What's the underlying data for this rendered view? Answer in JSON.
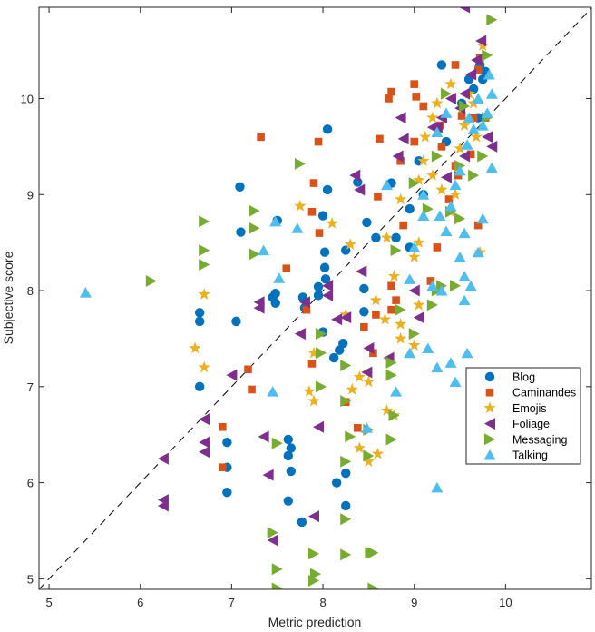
{
  "chart_data": {
    "type": "scatter",
    "title": "",
    "xlabel": "Metric prediction",
    "ylabel": "Subjective score",
    "xlim": [
      4.89,
      10.94
    ],
    "ylim": [
      4.89,
      10.95
    ],
    "xticks": [
      5,
      6,
      7,
      8,
      9,
      10
    ],
    "yticks": [
      5,
      6,
      7,
      8,
      9,
      10
    ],
    "xtick_labels": [
      "5",
      "6",
      "7",
      "8",
      "9",
      "10"
    ],
    "ytick_labels": [
      "5",
      "6",
      "7",
      "8",
      "9",
      "10"
    ],
    "grid": false,
    "legend_position": "right",
    "reference_line": {
      "style": "dashed",
      "color": "#000000",
      "from": [
        4.89,
        4.89
      ],
      "to": [
        10.94,
        10.94
      ]
    },
    "series": [
      {
        "name": "Blog",
        "marker": "circle",
        "color": "#0072BD",
        "points": [
          [
            7.09,
            9.08
          ],
          [
            7.1,
            8.61
          ],
          [
            6.65,
            7.77
          ],
          [
            6.65,
            7.68
          ],
          [
            7.05,
            7.68
          ],
          [
            6.65,
            7.0
          ],
          [
            7.48,
            7.97
          ],
          [
            7.48,
            7.87
          ],
          [
            7.45,
            7.93
          ],
          [
            7.5,
            8.73
          ],
          [
            7.78,
            7.93
          ],
          [
            7.8,
            7.82
          ],
          [
            7.95,
            8.04
          ],
          [
            7.95,
            7.95
          ],
          [
            8.05,
            9.68
          ],
          [
            8.05,
            9.05
          ],
          [
            8.0,
            8.78
          ],
          [
            8.02,
            8.4
          ],
          [
            8.02,
            8.24
          ],
          [
            8.03,
            8.12
          ],
          [
            8.0,
            7.57
          ],
          [
            8.12,
            7.3
          ],
          [
            8.18,
            7.38
          ],
          [
            8.22,
            7.45
          ],
          [
            8.25,
            8.42
          ],
          [
            8.38,
            9.13
          ],
          [
            8.45,
            8.02
          ],
          [
            8.45,
            7.78
          ],
          [
            8.48,
            8.71
          ],
          [
            8.58,
            8.55
          ],
          [
            8.75,
            9.12
          ],
          [
            8.8,
            8.55
          ],
          [
            8.95,
            8.85
          ],
          [
            8.95,
            8.45
          ],
          [
            9.05,
            9.35
          ],
          [
            9.1,
            9.0
          ],
          [
            9.3,
            10.35
          ],
          [
            9.35,
            9.55
          ],
          [
            9.52,
            9.95
          ],
          [
            9.6,
            10.2
          ],
          [
            9.65,
            10.1
          ],
          [
            9.72,
            10.35
          ],
          [
            9.75,
            10.2
          ],
          [
            9.78,
            10.28
          ],
          [
            9.7,
            9.8
          ],
          [
            6.95,
            6.42
          ],
          [
            6.95,
            6.16
          ],
          [
            6.95,
            5.9
          ],
          [
            7.62,
            6.45
          ],
          [
            7.65,
            6.36
          ],
          [
            7.62,
            6.28
          ],
          [
            7.65,
            6.12
          ],
          [
            7.62,
            5.81
          ],
          [
            7.77,
            5.59
          ],
          [
            8.15,
            6.0
          ],
          [
            8.25,
            6.1
          ],
          [
            8.25,
            5.76
          ]
        ]
      },
      {
        "name": "Caminandes",
        "marker": "square",
        "color": "#D95319",
        "points": [
          [
            7.32,
            9.6
          ],
          [
            7.9,
            9.12
          ],
          [
            7.95,
            9.55
          ],
          [
            7.88,
            8.82
          ],
          [
            7.96,
            8.6
          ],
          [
            7.6,
            8.23
          ],
          [
            7.82,
            7.8
          ],
          [
            7.18,
            7.18
          ],
          [
            7.22,
            6.97
          ],
          [
            6.9,
            6.58
          ],
          [
            6.9,
            6.16
          ],
          [
            7.88,
            7.24
          ],
          [
            8.25,
            6.84
          ],
          [
            8.38,
            6.57
          ],
          [
            8.55,
            7.35
          ],
          [
            8.45,
            7.62
          ],
          [
            8.58,
            7.75
          ],
          [
            8.75,
            7.8
          ],
          [
            8.8,
            7.9
          ],
          [
            8.75,
            8.05
          ],
          [
            8.88,
            8.68
          ],
          [
            8.6,
            8.98
          ],
          [
            8.62,
            9.58
          ],
          [
            8.75,
            10.07
          ],
          [
            8.72,
            10.0
          ],
          [
            9.0,
            10.15
          ],
          [
            9.02,
            10.02
          ],
          [
            9.1,
            9.92
          ],
          [
            9.0,
            9.55
          ],
          [
            9.45,
            10.35
          ],
          [
            9.52,
            9.82
          ],
          [
            9.65,
            9.8
          ],
          [
            9.7,
            10.3
          ],
          [
            9.72,
            10.42
          ],
          [
            9.78,
            9.8
          ],
          [
            9.62,
            9.42
          ],
          [
            9.45,
            9.3
          ],
          [
            9.7,
            8.68
          ],
          [
            9.3,
            9.5
          ],
          [
            9.28,
            9.72
          ],
          [
            8.85,
            9.35
          ],
          [
            9.18,
            8.1
          ],
          [
            9.25,
            8.45
          ],
          [
            9.38,
            8.95
          ],
          [
            9.48,
            9.2
          ]
        ]
      },
      {
        "name": "Emojis",
        "marker": "star",
        "color": "#EDB120",
        "points": [
          [
            6.6,
            7.4
          ],
          [
            6.7,
            7.96
          ],
          [
            6.7,
            7.2
          ],
          [
            7.75,
            8.88
          ],
          [
            7.9,
            7.35
          ],
          [
            7.85,
            6.95
          ],
          [
            7.9,
            6.85
          ],
          [
            8.25,
            7.75
          ],
          [
            8.3,
            8.48
          ],
          [
            8.1,
            8.7
          ],
          [
            8.4,
            7.1
          ],
          [
            8.5,
            7.05
          ],
          [
            8.32,
            6.97
          ],
          [
            8.4,
            6.36
          ],
          [
            8.5,
            6.22
          ],
          [
            8.6,
            6.3
          ],
          [
            8.7,
            6.75
          ],
          [
            8.78,
            6.7
          ],
          [
            8.58,
            7.9
          ],
          [
            8.68,
            7.7
          ],
          [
            8.85,
            7.65
          ],
          [
            8.85,
            7.5
          ],
          [
            9.0,
            7.43
          ],
          [
            9.05,
            7.85
          ],
          [
            8.78,
            8.15
          ],
          [
            8.7,
            8.55
          ],
          [
            9.0,
            8.35
          ],
          [
            9.05,
            8.5
          ],
          [
            8.85,
            8.95
          ],
          [
            9.05,
            9.15
          ],
          [
            9.2,
            9.2
          ],
          [
            9.3,
            9.05
          ],
          [
            9.45,
            9.0
          ],
          [
            9.4,
            8.82
          ],
          [
            9.12,
            9.6
          ],
          [
            9.25,
            9.95
          ],
          [
            9.55,
            9.72
          ],
          [
            9.5,
            9.48
          ],
          [
            9.68,
            9.6
          ],
          [
            9.75,
            10.55
          ],
          [
            9.6,
            10.05
          ],
          [
            9.72,
            8.4
          ],
          [
            9.4,
            10.15
          ],
          [
            9.1,
            9.35
          ],
          [
            9.2,
            9.8
          ],
          [
            9.65,
            9.95
          ]
        ]
      },
      {
        "name": "Foliage",
        "marker": "triangle-left",
        "color": "#7E2F8E",
        "points": [
          [
            6.25,
            6.25
          ],
          [
            6.25,
            5.82
          ],
          [
            6.25,
            5.76
          ],
          [
            6.7,
            6.66
          ],
          [
            6.7,
            6.42
          ],
          [
            6.7,
            6.32
          ],
          [
            7.0,
            7.12
          ],
          [
            7.3,
            7.82
          ],
          [
            7.3,
            7.88
          ],
          [
            7.8,
            7.88
          ],
          [
            7.75,
            7.55
          ],
          [
            7.35,
            6.48
          ],
          [
            7.4,
            6.08
          ],
          [
            7.45,
            5.4
          ],
          [
            7.95,
            6.58
          ],
          [
            7.9,
            5.65
          ],
          [
            8.25,
            7.72
          ],
          [
            8.15,
            7.7
          ],
          [
            8.05,
            7.95
          ],
          [
            8.05,
            8.05
          ],
          [
            8.35,
            9.2
          ],
          [
            8.4,
            9.05
          ],
          [
            8.42,
            8.2
          ],
          [
            8.48,
            7.15
          ],
          [
            8.5,
            7.4
          ],
          [
            8.72,
            7.3
          ],
          [
            8.82,
            9.4
          ],
          [
            8.85,
            9.8
          ],
          [
            8.88,
            9.58
          ],
          [
            9.0,
            8.0
          ],
          [
            9.05,
            7.72
          ],
          [
            9.25,
            9.7
          ],
          [
            9.3,
            9.8
          ],
          [
            9.4,
            10.0
          ],
          [
            9.5,
            9.9
          ],
          [
            9.55,
            10.05
          ],
          [
            9.62,
            10.25
          ],
          [
            9.68,
            10.4
          ],
          [
            9.73,
            10.6
          ],
          [
            9.55,
            10.95
          ],
          [
            9.8,
            9.6
          ],
          [
            9.85,
            9.5
          ],
          [
            9.55,
            9.4
          ],
          [
            9.35,
            9.18
          ],
          [
            9.2,
            9.7
          ]
        ]
      },
      {
        "name": "Messaging",
        "marker": "triangle-right",
        "color": "#77AC30",
        "points": [
          [
            6.12,
            8.1
          ],
          [
            6.7,
            8.72
          ],
          [
            6.7,
            8.42
          ],
          [
            6.7,
            8.27
          ],
          [
            7.25,
            8.83
          ],
          [
            7.25,
            8.65
          ],
          [
            7.25,
            8.38
          ],
          [
            7.75,
            9.32
          ],
          [
            7.98,
            7.0
          ],
          [
            7.98,
            7.55
          ],
          [
            7.98,
            7.35
          ],
          [
            7.5,
            6.41
          ],
          [
            7.45,
            5.48
          ],
          [
            7.5,
            5.1
          ],
          [
            7.5,
            4.9
          ],
          [
            7.9,
            5.26
          ],
          [
            7.92,
            5.05
          ],
          [
            7.9,
            4.98
          ],
          [
            8.25,
            5.62
          ],
          [
            8.25,
            5.25
          ],
          [
            8.25,
            6.22
          ],
          [
            8.3,
            6.48
          ],
          [
            8.25,
            6.85
          ],
          [
            8.25,
            7.22
          ],
          [
            8.55,
            5.27
          ],
          [
            8.52,
            5.27
          ],
          [
            8.55,
            4.9
          ],
          [
            8.5,
            6.28
          ],
          [
            8.5,
            6.55
          ],
          [
            8.75,
            6.45
          ],
          [
            8.78,
            6.7
          ],
          [
            8.75,
            7.25
          ],
          [
            8.75,
            7.12
          ],
          [
            8.85,
            7.8
          ],
          [
            9.0,
            7.55
          ],
          [
            9.2,
            7.85
          ],
          [
            9.3,
            8.05
          ],
          [
            9.25,
            8.0
          ],
          [
            9.0,
            9.12
          ],
          [
            9.15,
            8.85
          ],
          [
            9.4,
            8.82
          ],
          [
            9.5,
            8.75
          ],
          [
            9.65,
            9.2
          ],
          [
            9.75,
            9.4
          ],
          [
            9.8,
            9.8
          ],
          [
            9.8,
            10.45
          ],
          [
            9.85,
            10.82
          ],
          [
            9.35,
            10.05
          ],
          [
            9.55,
            9.92
          ],
          [
            9.5,
            9.3
          ],
          [
            9.25,
            9.4
          ],
          [
            8.8,
            8.42
          ],
          [
            9.45,
            8.05
          ]
        ]
      },
      {
        "name": "Talking",
        "marker": "triangle-up",
        "color": "#4DBEEE",
        "points": [
          [
            5.4,
            7.98
          ],
          [
            7.35,
            8.42
          ],
          [
            7.48,
            8.72
          ],
          [
            7.52,
            8.13
          ],
          [
            7.72,
            8.65
          ],
          [
            7.45,
            6.95
          ],
          [
            8.48,
            6.57
          ],
          [
            8.8,
            6.95
          ],
          [
            8.95,
            7.35
          ],
          [
            9.15,
            7.4
          ],
          [
            9.25,
            5.95
          ],
          [
            9.45,
            7.05
          ],
          [
            9.25,
            7.2
          ],
          [
            9.4,
            7.25
          ],
          [
            9.58,
            7.35
          ],
          [
            9.2,
            8.05
          ],
          [
            9.3,
            8.0
          ],
          [
            9.5,
            8.35
          ],
          [
            9.55,
            8.15
          ],
          [
            9.55,
            7.9
          ],
          [
            9.62,
            8.05
          ],
          [
            9.7,
            8.4
          ],
          [
            9.75,
            8.75
          ],
          [
            9.55,
            8.6
          ],
          [
            9.35,
            8.62
          ],
          [
            9.28,
            8.78
          ],
          [
            9.4,
            8.88
          ],
          [
            9.45,
            9.1
          ],
          [
            9.5,
            9.25
          ],
          [
            9.58,
            9.52
          ],
          [
            9.65,
            9.68
          ],
          [
            9.75,
            9.72
          ],
          [
            9.8,
            9.85
          ],
          [
            9.85,
            10.05
          ],
          [
            9.82,
            10.25
          ],
          [
            9.7,
            10.0
          ],
          [
            9.6,
            9.8
          ],
          [
            9.85,
            9.28
          ],
          [
            9.25,
            9.65
          ],
          [
            9.1,
            9.0
          ],
          [
            8.7,
            9.1
          ],
          [
            9.1,
            8.78
          ],
          [
            8.95,
            8.12
          ],
          [
            9.0,
            8.45
          ],
          [
            9.35,
            9.85
          ]
        ]
      }
    ]
  }
}
